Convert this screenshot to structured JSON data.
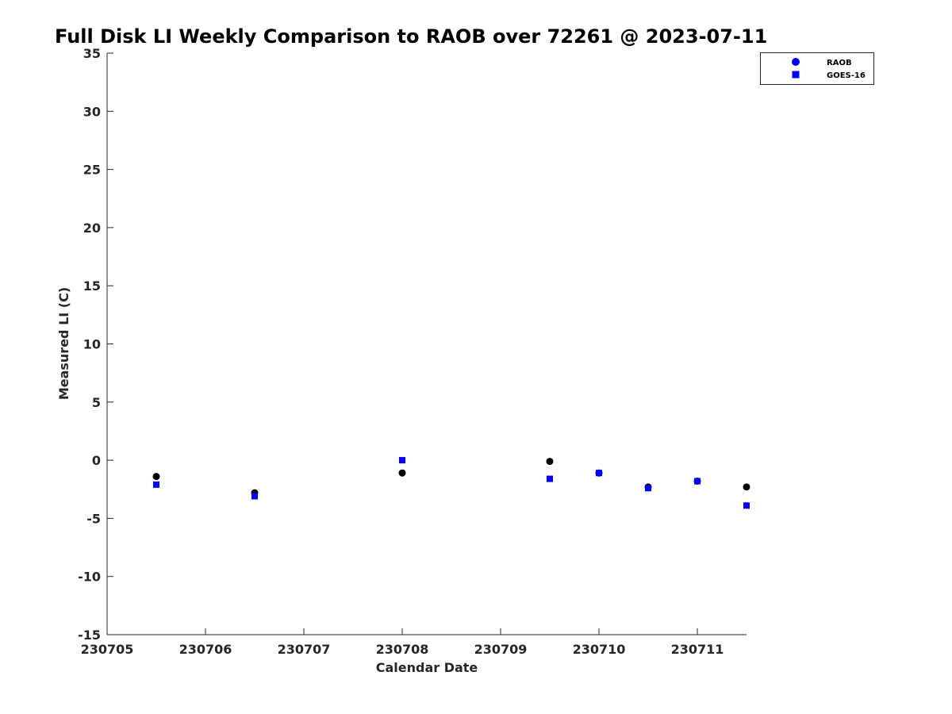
{
  "chart_data": {
    "type": "scatter",
    "title": "Full Disk LI Weekly Comparison to RAOB over 72261 @ 2023-07-11",
    "xlabel": "Calendar Date",
    "ylabel": "Measured LI (C)",
    "x_tick_labels": [
      "230705",
      "230706",
      "230707",
      "230708",
      "230709",
      "230710",
      "230711"
    ],
    "xlim": [
      "230705",
      "230711.5"
    ],
    "ylim": [
      -15,
      35
    ],
    "y_ticks": [
      -15,
      -10,
      -5,
      0,
      5,
      10,
      15,
      20,
      25,
      30,
      35
    ],
    "grid": false,
    "legend_position": "top-right",
    "series": [
      {
        "name": "RAOB",
        "marker": "circle",
        "legend_color": "#0000ff",
        "point_color": "#000000",
        "x": [
          230705.5,
          230706.5,
          230708.0,
          230709.5,
          230710.0,
          230710.5,
          230711.0,
          230711.5
        ],
        "y": [
          -1.4,
          -2.8,
          -1.1,
          -0.1,
          -1.1,
          -2.3,
          -1.8,
          -2.3
        ]
      },
      {
        "name": "GOES-16",
        "marker": "square",
        "legend_color": "#0000ff",
        "point_color": "#0000ff",
        "x": [
          230705.5,
          230706.5,
          230708.0,
          230709.5,
          230710.0,
          230710.5,
          230711.0,
          230711.5
        ],
        "y": [
          -2.1,
          -3.1,
          0.0,
          -1.6,
          -1.1,
          -2.4,
          -1.8,
          -3.9
        ]
      }
    ]
  }
}
